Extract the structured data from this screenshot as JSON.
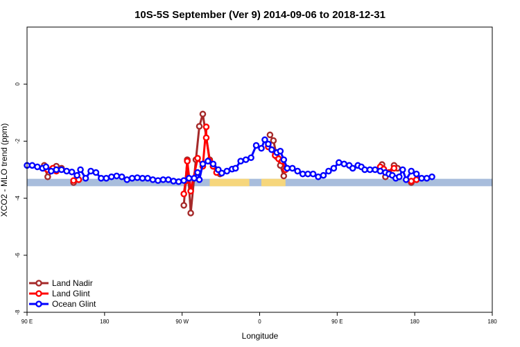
{
  "chart_data": {
    "type": "line",
    "title": "10S-5S September (Ver 9)   2014-09-06 to 2018-12-31",
    "xlabel": "Longitude",
    "ylabel": "XCO2 - MLO trend (ppm)",
    "xlim": [
      -90,
      180
    ],
    "ylim": [
      -8,
      2
    ],
    "x_ticks": [
      {
        "value": -90,
        "label": "90 E"
      },
      {
        "value": -45,
        "label": "180"
      },
      {
        "value": 0,
        "label": "90 W"
      },
      {
        "value": 45,
        "label": "0"
      },
      {
        "value": 90,
        "label": "90 E"
      },
      {
        "value": 135,
        "label": "180"
      }
    ],
    "y_ticks": [
      {
        "value": 0,
        "label": "0"
      },
      {
        "value": -2,
        "label": "-2"
      },
      {
        "value": -4,
        "label": "-4"
      },
      {
        "value": -6,
        "label": "-6"
      },
      {
        "value": -8,
        "label": "-8"
      }
    ],
    "grid": false,
    "legend_position": "bottom-left",
    "surface_band": {
      "y_range": [
        -3.58,
        -3.32
      ],
      "ocean_color": "#a8bddc",
      "land_color": "#f6d67c",
      "land_segments": [
        [
          16,
          39
        ],
        [
          46,
          60
        ]
      ]
    },
    "series": [
      {
        "name": "Land Nadir",
        "color": "#a52a2a",
        "segments": [
          [
            [
              -80,
              -2.85
            ],
            [
              -78,
              -3.25
            ],
            [
              -73,
              -2.88
            ],
            [
              -70,
              -2.95
            ]
          ],
          [
            [
              -63,
              -3.45
            ],
            [
              -60,
              -3.35
            ]
          ],
          [
            [
              1,
              -4.25
            ],
            [
              3,
              -2.65
            ],
            [
              5,
              -4.52
            ],
            [
              8,
              -2.65
            ],
            [
              10,
              -1.48
            ],
            [
              12,
              -1.05
            ],
            [
              16,
              -2.65
            ],
            [
              18,
              -2.88
            ],
            [
              22,
              -3.15
            ]
          ],
          [
            [
              51,
              -1.78
            ],
            [
              53,
              -1.98
            ],
            [
              55,
              -2.55
            ],
            [
              57,
              -2.85
            ],
            [
              59,
              -3.22
            ]
          ],
          [
            [
              116,
              -2.82
            ],
            [
              118,
              -3.25
            ],
            [
              123,
              -2.85
            ],
            [
              125,
              -2.95
            ]
          ],
          [
            [
              133,
              -3.45
            ],
            [
              136,
              -3.35
            ]
          ]
        ]
      },
      {
        "name": "Land Glint",
        "color": "#ff0000",
        "segments": [
          [
            [
              -80,
              -2.95
            ],
            [
              -78,
              -3.0
            ],
            [
              -75,
              -2.95
            ],
            [
              -73,
              -3.05
            ]
          ],
          [
            [
              -63,
              -3.38
            ],
            [
              -60,
              -3.35
            ]
          ],
          [
            [
              1,
              -3.85
            ],
            [
              2,
              -3.4
            ],
            [
              3,
              -2.7
            ],
            [
              5,
              -3.75
            ],
            [
              9,
              -2.6
            ],
            [
              12,
              -2.88
            ],
            [
              14,
              -1.5
            ],
            [
              14,
              -1.88
            ],
            [
              16,
              -2.7
            ],
            [
              18,
              -2.88
            ],
            [
              20,
              -3.1
            ]
          ],
          [
            [
              50,
              -2.2
            ],
            [
              54,
              -2.5
            ],
            [
              56,
              -2.62
            ],
            [
              58,
              -2.7
            ],
            [
              60,
              -3.0
            ]
          ],
          [
            [
              115,
              -2.9
            ],
            [
              117,
              -2.98
            ],
            [
              120,
              -3.1
            ],
            [
              123,
              -2.95
            ]
          ],
          [
            [
              133,
              -3.4
            ],
            [
              136,
              -3.35
            ]
          ]
        ]
      },
      {
        "name": "Ocean Glint",
        "color": "#0000ff",
        "segments": [
          [
            [
              -90,
              -2.85
            ],
            [
              -87,
              -2.85
            ],
            [
              -84,
              -2.9
            ],
            [
              -81,
              -2.95
            ],
            [
              -79,
              -2.9
            ],
            [
              -76,
              -3.05
            ],
            [
              -73,
              -3.0
            ],
            [
              -70,
              -3.0
            ],
            [
              -67,
              -3.05
            ],
            [
              -64,
              -3.08
            ],
            [
              -61,
              -3.2
            ],
            [
              -59,
              -3.0
            ],
            [
              -56,
              -3.3
            ],
            [
              -53,
              -3.05
            ],
            [
              -50,
              -3.1
            ],
            [
              -47,
              -3.3
            ],
            [
              -44,
              -3.3
            ],
            [
              -41,
              -3.25
            ],
            [
              -38,
              -3.22
            ],
            [
              -35,
              -3.25
            ],
            [
              -32,
              -3.35
            ],
            [
              -29,
              -3.3
            ],
            [
              -26,
              -3.28
            ],
            [
              -23,
              -3.3
            ],
            [
              -20,
              -3.3
            ],
            [
              -17,
              -3.35
            ],
            [
              -14,
              -3.38
            ],
            [
              -11,
              -3.35
            ],
            [
              -8,
              -3.35
            ],
            [
              -5,
              -3.4
            ],
            [
              -2,
              -3.42
            ],
            [
              1,
              -3.38
            ],
            [
              4,
              -3.3
            ],
            [
              7,
              -3.3
            ],
            [
              9,
              -3.1
            ],
            [
              10,
              -3.35
            ],
            [
              12,
              -2.8
            ],
            [
              15,
              -2.7
            ],
            [
              18,
              -2.8
            ],
            [
              21,
              -3.0
            ],
            [
              23,
              -3.12
            ],
            [
              26,
              -3.05
            ],
            [
              29,
              -2.98
            ],
            [
              31,
              -2.95
            ],
            [
              34,
              -2.7
            ],
            [
              37,
              -2.65
            ],
            [
              40,
              -2.58
            ],
            [
              43,
              -2.15
            ],
            [
              46,
              -2.25
            ],
            [
              48,
              -1.95
            ],
            [
              50,
              -2.1
            ],
            [
              52,
              -2.3
            ],
            [
              55,
              -2.4
            ],
            [
              57,
              -2.35
            ],
            [
              59,
              -2.65
            ],
            [
              61,
              -2.95
            ],
            [
              64,
              -2.95
            ],
            [
              67,
              -3.05
            ],
            [
              70,
              -3.15
            ],
            [
              73,
              -3.15
            ],
            [
              76,
              -3.15
            ],
            [
              79,
              -3.25
            ],
            [
              82,
              -3.2
            ],
            [
              85,
              -3.05
            ],
            [
              88,
              -2.95
            ],
            [
              91,
              -2.75
            ],
            [
              94,
              -2.8
            ],
            [
              97,
              -2.85
            ],
            [
              99,
              -2.95
            ],
            [
              102,
              -2.85
            ],
            [
              104,
              -2.9
            ],
            [
              106,
              -3.0
            ],
            [
              109,
              -3.0
            ],
            [
              112,
              -3.0
            ],
            [
              115,
              -3.05
            ],
            [
              118,
              -3.1
            ],
            [
              120,
              -3.15
            ],
            [
              122,
              -3.2
            ],
            [
              124,
              -3.3
            ],
            [
              126,
              -3.25
            ],
            [
              128,
              -3.0
            ],
            [
              130,
              -3.35
            ],
            [
              133,
              -3.05
            ],
            [
              136,
              -3.15
            ],
            [
              139,
              -3.3
            ],
            [
              142,
              -3.3
            ],
            [
              145,
              -3.25
            ]
          ]
        ]
      }
    ]
  }
}
